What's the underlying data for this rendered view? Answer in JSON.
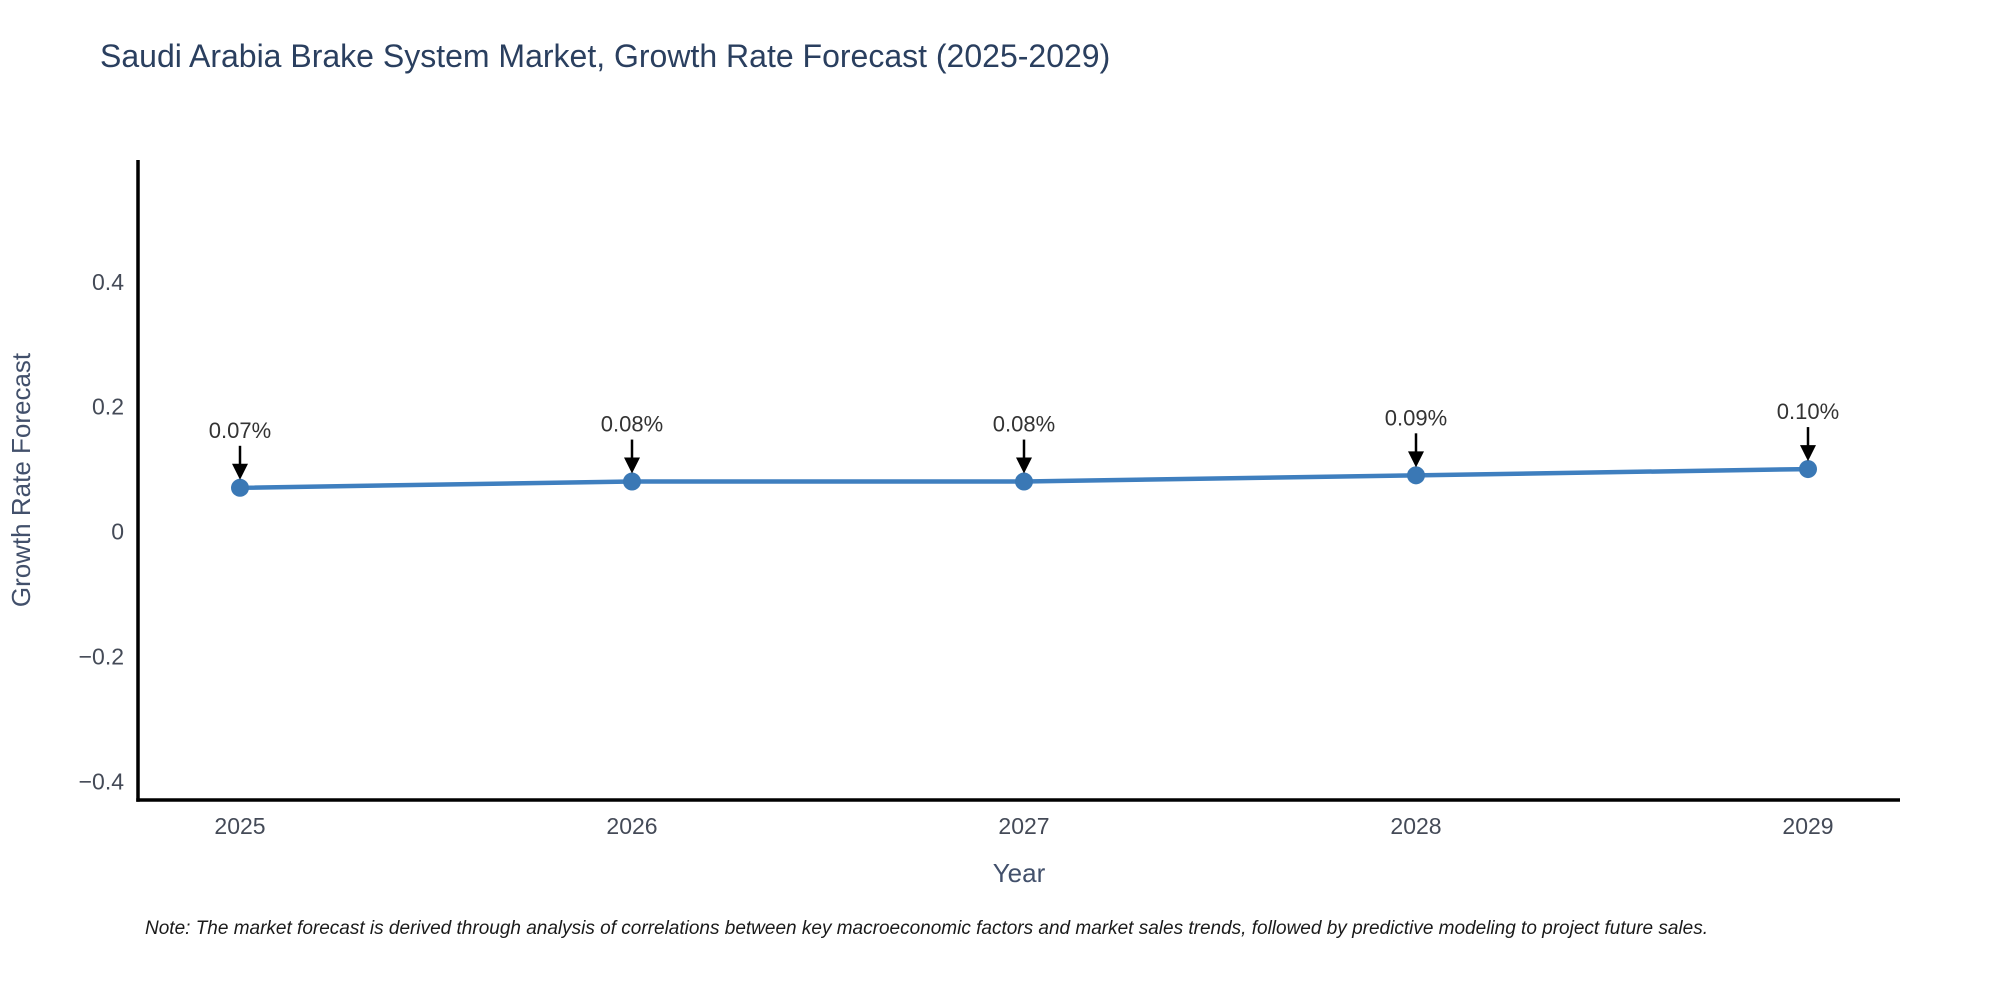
{
  "chart_data": {
    "type": "line",
    "title": "Saudi Arabia Brake System Market, Growth Rate Forecast (2025-2029)",
    "xlabel": "Year",
    "ylabel": "Growth Rate Forecast",
    "categories": [
      "2025",
      "2026",
      "2027",
      "2028",
      "2029"
    ],
    "series": [
      {
        "name": "Growth Rate Forecast",
        "values": [
          0.07,
          0.08,
          0.08,
          0.09,
          0.1
        ]
      }
    ],
    "point_labels": [
      "0.07%",
      "0.08%",
      "0.08%",
      "0.09%",
      "0.10%"
    ],
    "yticks": [
      0.4,
      0.2,
      0,
      -0.2,
      -0.4
    ],
    "ylim": [
      -0.43,
      0.595
    ],
    "grid": false,
    "legend_position": "none",
    "line_color": "#3f7fbf",
    "marker_color": "#3a78b5",
    "axis_color": "#000000",
    "arrow_color": "#000000"
  },
  "colors": {
    "title_text": "#2a3f5f",
    "tick_text": "#444a57",
    "axis_title_text": "#42506b",
    "annotation_text": "#333333",
    "background": "#ffffff"
  },
  "note": {
    "text": "Note: The market forecast is derived through analysis of correlations between key macroeconomic factors and market sales trends, followed by predictive modeling to project future sales."
  }
}
